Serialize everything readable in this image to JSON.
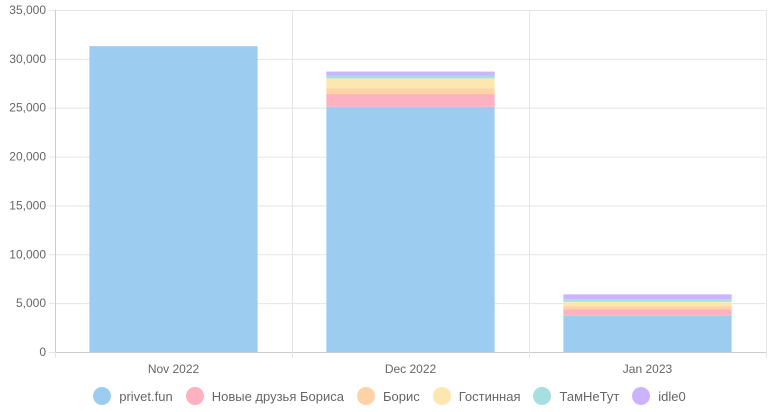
{
  "chart_data": {
    "type": "bar",
    "stacked": true,
    "categories": [
      "Nov 2022",
      "Dec 2022",
      "Jan 2023"
    ],
    "series": [
      {
        "name": "privet.fun",
        "color": "#9ccdf1",
        "values": [
          31300,
          25100,
          3700
        ]
      },
      {
        "name": "Новые друзья Бориса",
        "color": "#feb2c1",
        "values": [
          0,
          1300,
          650
        ]
      },
      {
        "name": "Борис",
        "color": "#fed3a8",
        "values": [
          0,
          600,
          350
        ]
      },
      {
        "name": "Гостинная",
        "color": "#fee7ae",
        "values": [
          0,
          1000,
          450
        ]
      },
      {
        "name": "ТамНеТут",
        "color": "#a5dfdf",
        "values": [
          0,
          300,
          250
        ]
      },
      {
        "name": "idle0",
        "color": "#ccb3fe",
        "values": [
          0,
          400,
          500
        ]
      }
    ],
    "ylim": [
      0,
      35000
    ],
    "yticks": [
      0,
      5000,
      10000,
      15000,
      20000,
      25000,
      30000,
      35000
    ],
    "ytick_labels": [
      "0",
      "5,000",
      "10,000",
      "15,000",
      "20,000",
      "25,000",
      "30,000",
      "35,000"
    ],
    "grid": true,
    "legend_position": "bottom"
  }
}
